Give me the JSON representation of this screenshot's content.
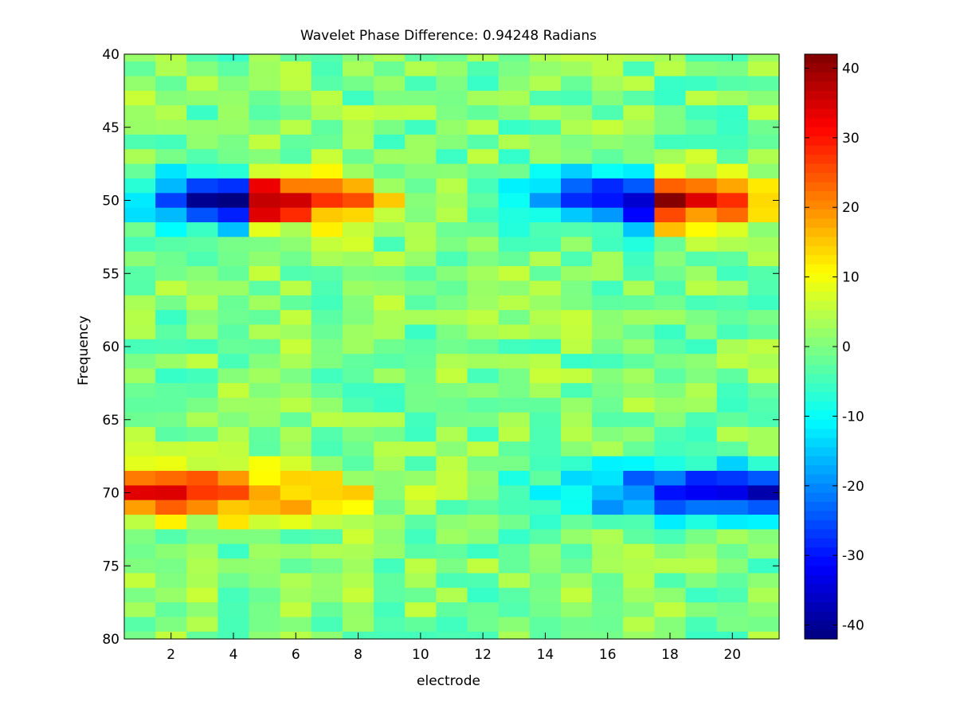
{
  "chart_data": {
    "type": "heatmap",
    "title": "Wavelet Phase Difference: 0.94248 Radians",
    "xlabel": "electrode",
    "ylabel": "Frequency",
    "xlim": [
      0.5,
      21.5
    ],
    "ylim": [
      40,
      80
    ],
    "y_reversed": true,
    "x_ticks": [
      2,
      4,
      6,
      8,
      10,
      12,
      14,
      16,
      18,
      20
    ],
    "y_ticks": [
      40,
      45,
      50,
      55,
      60,
      65,
      70,
      75,
      80
    ],
    "colorbar": {
      "colormap": "jet",
      "clim": [
        -42,
        42
      ],
      "ticks": [
        -40,
        -30,
        -20,
        -10,
        0,
        10,
        20,
        30,
        40
      ]
    },
    "grid": false,
    "electrodes": [
      1,
      2,
      3,
      4,
      5,
      6,
      7,
      8,
      9,
      10,
      11,
      12,
      13,
      14,
      15,
      16,
      17,
      18,
      19,
      20,
      21
    ],
    "frequencies": [
      40,
      41,
      42,
      43,
      44,
      45,
      46,
      47,
      48,
      49,
      50,
      51,
      52,
      53,
      54,
      55,
      56,
      57,
      58,
      59,
      60,
      61,
      62,
      63,
      64,
      65,
      66,
      67,
      68,
      69,
      70,
      71,
      72,
      73,
      74,
      75,
      76,
      77,
      78,
      79,
      80
    ],
    "peak_50Hz": [
      -15,
      -25,
      -38,
      -40,
      38,
      30,
      25,
      20,
      9,
      5,
      0,
      -2,
      -8,
      -18,
      -28,
      -32,
      -40,
      38,
      32,
      25,
      15
    ],
    "peak_70Hz": [
      30,
      30,
      28,
      26,
      22,
      18,
      14,
      9,
      5,
      2,
      0,
      -3,
      -6,
      -10,
      -15,
      -20,
      -25,
      -30,
      -33,
      -35,
      -35
    ],
    "band_halfwidth_hz": 1.3,
    "background_range": [
      -6,
      6
    ]
  }
}
